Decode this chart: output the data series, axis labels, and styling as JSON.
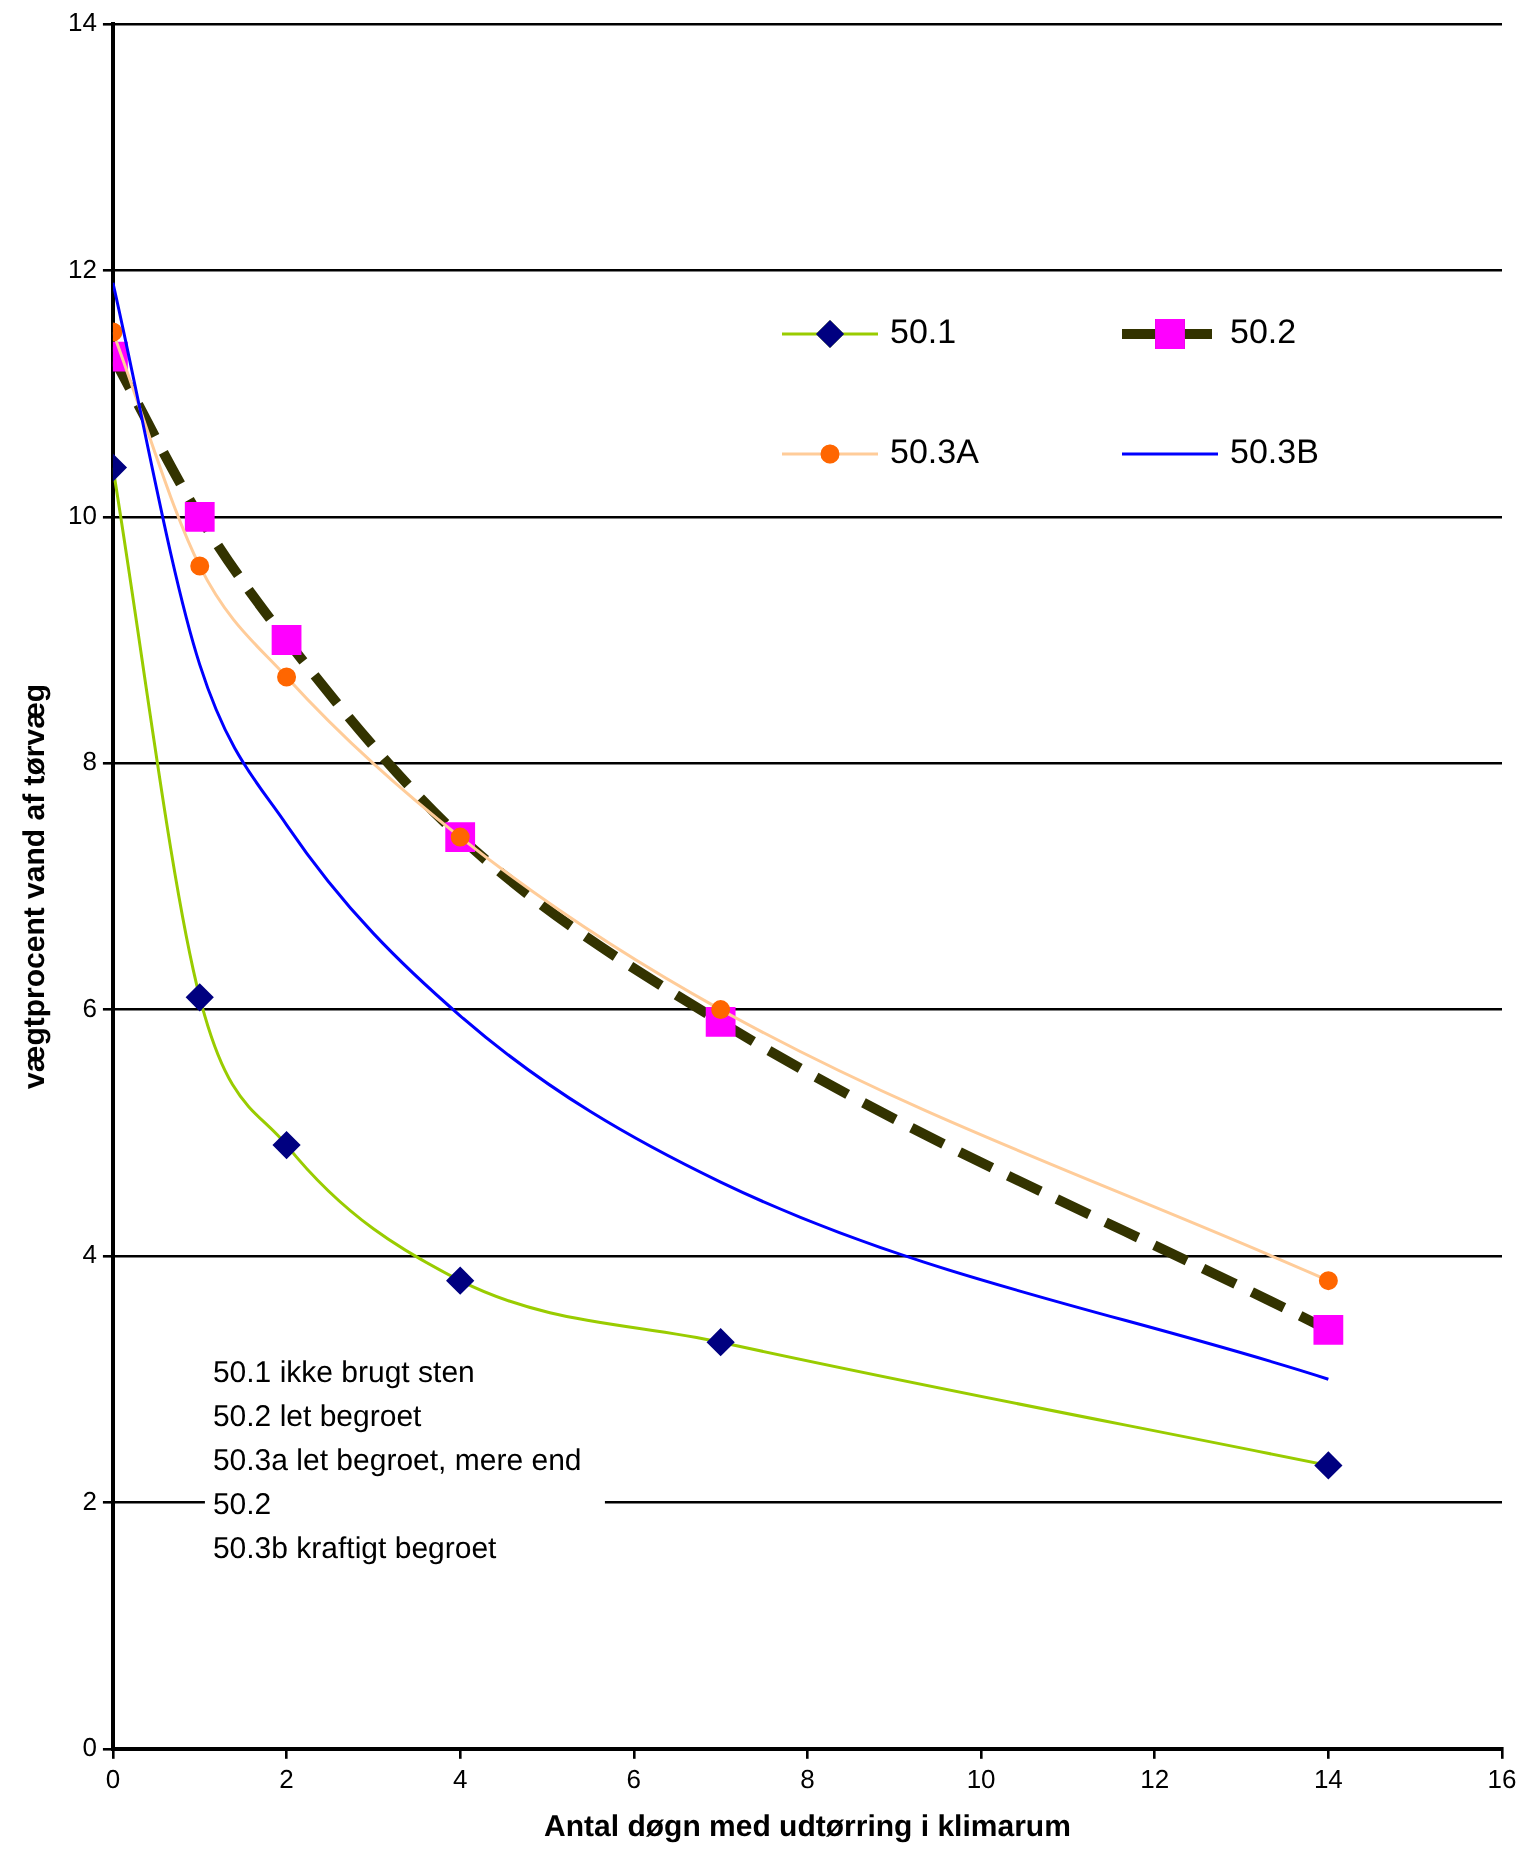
{
  "chart_data": {
    "type": "line",
    "xlabel": "Antal døgn med udtørring i klimarum",
    "ylabel": "vægtprocent vand af tørvæg",
    "x": [
      0,
      1,
      2,
      4,
      7,
      14
    ],
    "series": [
      {
        "name": "50.1",
        "color": "#99cc00",
        "colors": [
          "#000080",
          "#000080",
          "#000080",
          "#000080",
          "#000080",
          "#000080"
        ],
        "marker": "diamond",
        "values": [
          10.4,
          6.1,
          4.9,
          3.8,
          3.3,
          2.3
        ]
      },
      {
        "name": "50.2",
        "color": "#333300",
        "colors": [
          "#ff00ff",
          "#ff00ff",
          "#ff00ff",
          "#ff00ff",
          "#ff00ff",
          "#ff00ff"
        ],
        "marker": "square",
        "line_style": "dashed",
        "values": [
          11.3,
          10.0,
          9.0,
          7.4,
          5.9,
          3.4
        ]
      },
      {
        "name": "50.3A",
        "color": "#ffcc99",
        "colors": [
          "#ff6600",
          "#ff6600",
          "#ff6600",
          "#ff6600",
          "#ff6600",
          "#ff6600"
        ],
        "marker": "circle",
        "values": [
          11.5,
          9.6,
          8.7,
          7.4,
          6.0,
          3.8
        ]
      },
      {
        "name": "50.3B",
        "color": "#0000ff",
        "marker": "none",
        "values": [
          11.9,
          8.8,
          7.5,
          5.95,
          4.6,
          3.0
        ]
      }
    ],
    "xlim": [
      0,
      16
    ],
    "xticks": [
      0,
      2,
      4,
      6,
      8,
      10,
      12,
      14,
      16
    ],
    "ylim": [
      0,
      14
    ],
    "yticks": [
      0,
      2,
      4,
      6,
      8,
      10,
      12,
      14
    ],
    "grid": "y",
    "legend": "top right",
    "annotations": [
      "50.1 ikke brugt sten",
      "50.2 let begroet",
      "50.3a let begroet, mere end 50.2",
      "50.3b kraftigt begroet"
    ]
  }
}
